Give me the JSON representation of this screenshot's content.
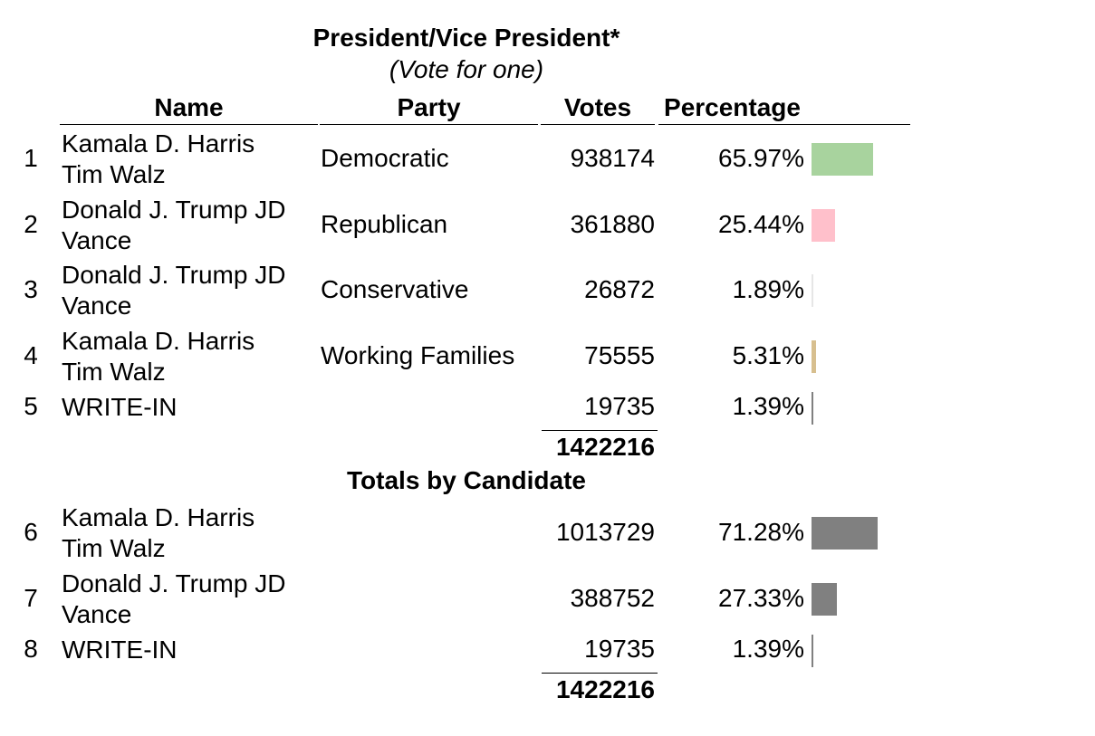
{
  "title": "President/Vice President*",
  "subtitle": "(Vote for one)",
  "headers": {
    "name": "Name",
    "party": "Party",
    "votes": "Votes",
    "percentage": "Percentage"
  },
  "rows": [
    {
      "num": "1",
      "name1": "Kamala D. Harris",
      "name2": "Tim Walz",
      "party": "Democratic",
      "votes": "938174",
      "pct": "65.97%",
      "bar_color": "#a8d39e",
      "share": 65.97
    },
    {
      "num": "2",
      "name1": "Donald J. Trump JD",
      "name2": "Vance",
      "party": "Republican",
      "votes": "361880",
      "pct": "25.44%",
      "bar_color": "#ffc0cb",
      "share": 25.44
    },
    {
      "num": "3",
      "name1": "Donald J. Trump JD",
      "name2": "Vance",
      "party": "Conservative",
      "votes": "26872",
      "pct": "1.89%",
      "bar_color": "#e6e6e6",
      "share": 1.89
    },
    {
      "num": "4",
      "name1": "Kamala D. Harris",
      "name2": "Tim Walz",
      "party": "Working Families",
      "votes": "75555",
      "pct": "5.31%",
      "bar_color": "#d7bf8f",
      "share": 5.31
    },
    {
      "num": "5",
      "name1": "WRITE-IN",
      "name2": "",
      "party": "",
      "votes": "19735",
      "pct": "1.39%",
      "bar_color": "#808080",
      "share": 1.39
    }
  ],
  "total1": "1422216",
  "section_title": "Totals by Candidate",
  "candidate_rows": [
    {
      "num": "6",
      "name1": "Kamala D. Harris",
      "name2": "Tim Walz",
      "votes": "1013729",
      "pct": "71.28%",
      "bar_color": "#808080",
      "share": 71.28
    },
    {
      "num": "7",
      "name1": "Donald J. Trump JD",
      "name2": "Vance",
      "votes": "388752",
      "pct": "27.33%",
      "bar_color": "#808080",
      "share": 27.33
    },
    {
      "num": "8",
      "name1": "WRITE-IN",
      "name2": "",
      "votes": "19735",
      "pct": "1.39%",
      "bar_color": "#808080",
      "share": 1.39
    }
  ],
  "total2": "1422216"
}
